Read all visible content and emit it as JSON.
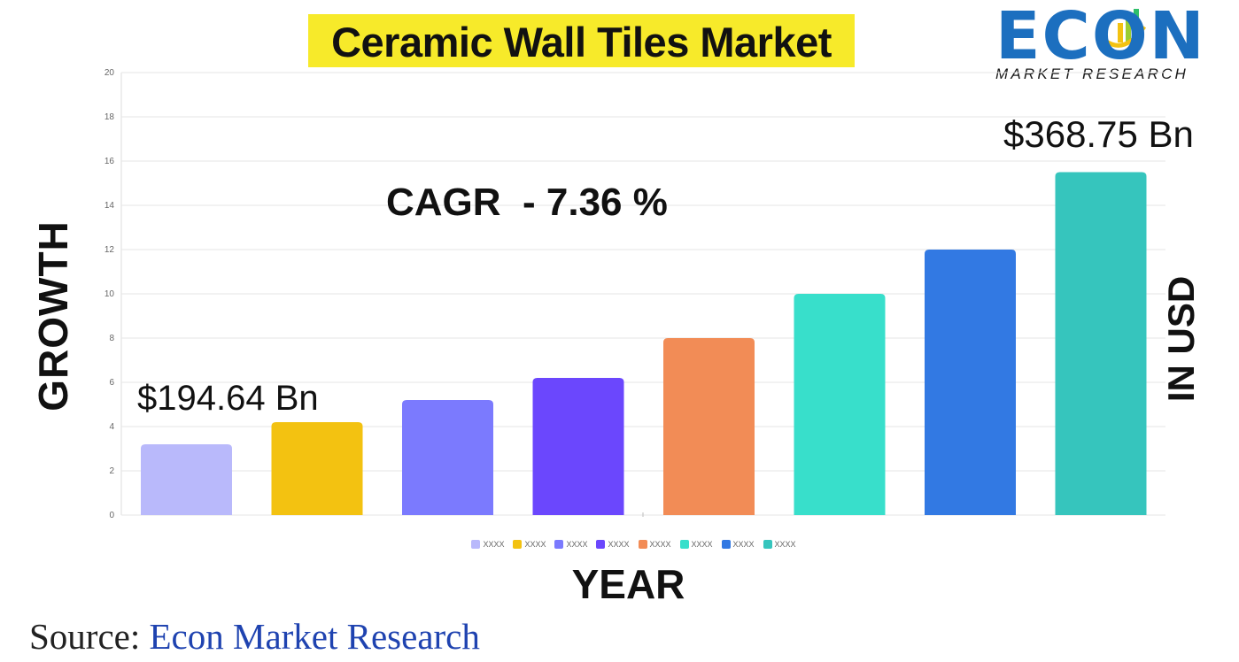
{
  "title": "Ceramic Wall Tiles Market",
  "logo": {
    "word": "ECON",
    "subtitle": "MARKET RESEARCH"
  },
  "annotations": {
    "cagr": "CAGR  - 7.36 %",
    "start_value": "$194.64 Bn",
    "end_value": "$368.75 Bn"
  },
  "source": {
    "prefix": "Source:",
    "name": "Econ Market Research"
  },
  "chart_data": {
    "type": "bar",
    "title": "Ceramic Wall Tiles Market",
    "xlabel": "YEAR",
    "ylabel": "GROWTH",
    "ylabel_right": "IN USD",
    "ylim": [
      0,
      20
    ],
    "yticks": [
      0,
      2,
      4,
      6,
      8,
      10,
      12,
      14,
      16,
      18,
      20
    ],
    "grid": true,
    "legend_position": "bottom",
    "categories": [
      "XXXX",
      "XXXX",
      "XXXX",
      "XXXX",
      "XXXX",
      "XXXX",
      "XXXX",
      "XXXX"
    ],
    "values": [
      3.2,
      4.2,
      5.2,
      6.2,
      8.0,
      10.0,
      12.0,
      15.5
    ],
    "colors": [
      "#b9b9fb",
      "#f3c211",
      "#7b7afe",
      "#6b47fd",
      "#f28c56",
      "#38dfcb",
      "#3279e3",
      "#36c5bd"
    ]
  }
}
